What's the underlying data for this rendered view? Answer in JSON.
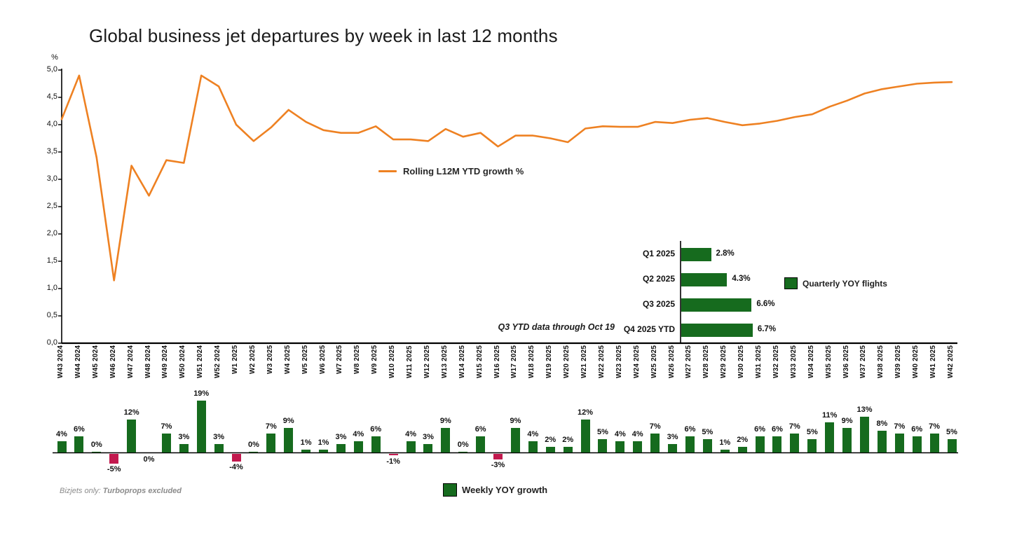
{
  "title": "Global business jet departures by week in last 12 months",
  "annotation": "Q3 YTD data through Oct 19",
  "footnote": {
    "prefix": "Bizjets only: ",
    "emphasis": "Turboprops excluded"
  },
  "legends": {
    "line": "Rolling L12M YTD growth %",
    "weekly": "Weekly YOY growth",
    "quarterly": "Quarterly YOY flights"
  },
  "colors": {
    "line_orange": "#EE8122",
    "bar_green": "#166B1E",
    "bar_crimson": "#C2194E",
    "axis_black": "#000000"
  },
  "y_axis": {
    "unit": "%",
    "tick_labels": [
      "5,0",
      "4,5",
      "4,0",
      "3,5",
      "3,0",
      "2,5",
      "2,0",
      "1,5",
      "1,0",
      "0,5",
      "0,0"
    ],
    "min": 0,
    "max": 5
  },
  "chart_data": [
    {
      "type": "line",
      "name": "Rolling L12M YTD growth %",
      "ylabel": "%",
      "ylim": [
        0,
        5
      ],
      "grid": false,
      "legend_position": "center-left of plot",
      "x": [
        "W43 2024",
        "W44 2024",
        "W45 2024",
        "W46 2024",
        "W47 2024",
        "W48 2024",
        "W49 2024",
        "W50 2024",
        "W51 2024",
        "W52 2024",
        "W1 2025",
        "W2 2025",
        "W3 2025",
        "W4 2025",
        "W5 2025",
        "W6 2025",
        "W7 2025",
        "W8 2025",
        "W9 2025",
        "W10 2025",
        "W11 2025",
        "W12 2025",
        "W13 2025",
        "W14 2025",
        "W15 2025",
        "W16 2025",
        "W17 2025",
        "W18 2025",
        "W19 2025",
        "W20 2025",
        "W21 2025",
        "W22 2025",
        "W23 2025",
        "W24 2025",
        "W25 2025",
        "W26 2025",
        "W27 2025",
        "W28 2025",
        "W29 2025",
        "W30 2025",
        "W31 2025",
        "W32 2025",
        "W33 2025",
        "W34 2025",
        "W35 2025",
        "W36 2025",
        "W37 2025",
        "W38 2025",
        "W39 2025",
        "W40 2025",
        "W41 2025",
        "W42 2025"
      ],
      "y": [
        4.1,
        4.9,
        3.4,
        1.15,
        3.25,
        2.7,
        3.35,
        3.3,
        4.9,
        4.7,
        4.0,
        3.7,
        3.95,
        4.27,
        4.05,
        3.9,
        3.85,
        3.85,
        3.97,
        3.73,
        3.73,
        3.7,
        3.92,
        3.78,
        3.85,
        3.6,
        3.8,
        3.8,
        3.75,
        3.68,
        3.93,
        3.97,
        3.96,
        3.96,
        4.05,
        4.03,
        4.09,
        4.12,
        4.05,
        3.99,
        4.02,
        4.07,
        4.14,
        4.19,
        4.33,
        4.44,
        4.57,
        4.65,
        4.7,
        4.75,
        4.77,
        4.78
      ]
    },
    {
      "type": "bar",
      "name": "Weekly YOY growth",
      "unit": "%",
      "categories": [
        "W43 2024",
        "W44 2024",
        "W45 2024",
        "W46 2024",
        "W47 2024",
        "W48 2024",
        "W49 2024",
        "W50 2024",
        "W51 2024",
        "W52 2024",
        "W1 2025",
        "W2 2025",
        "W3 2025",
        "W4 2025",
        "W5 2025",
        "W6 2025",
        "W7 2025",
        "W8 2025",
        "W9 2025",
        "W10 2025",
        "W11 2025",
        "W12 2025",
        "W13 2025",
        "W14 2025",
        "W15 2025",
        "W16 2025",
        "W17 2025",
        "W18 2025",
        "W19 2025",
        "W20 2025",
        "W21 2025",
        "W22 2025",
        "W23 2025",
        "W24 2025",
        "W25 2025",
        "W26 2025",
        "W27 2025",
        "W28 2025",
        "W29 2025",
        "W30 2025",
        "W31 2025",
        "W32 2025",
        "W33 2025",
        "W34 2025",
        "W35 2025",
        "W36 2025",
        "W37 2025",
        "W38 2025",
        "W39 2025",
        "W40 2025",
        "W41 2025",
        "W42 2025"
      ],
      "values": [
        4,
        6,
        0,
        -5,
        12,
        0,
        7,
        3,
        19,
        3,
        -4,
        0,
        7,
        9,
        1,
        1,
        3,
        4,
        6,
        -1,
        4,
        3,
        9,
        0,
        6,
        -3,
        9,
        4,
        2,
        2,
        12,
        5,
        4,
        4,
        7,
        3,
        6,
        5,
        1,
        2,
        6,
        6,
        7,
        5,
        11,
        9,
        13,
        8,
        7,
        6,
        7,
        5
      ],
      "labels": [
        "4%",
        "6%",
        "0%",
        "-5%",
        "12%",
        "0%",
        "7%",
        "3%",
        "19%",
        "3%",
        "-4%",
        "0%",
        "7%",
        "9%",
        "1%",
        "1%",
        "3%",
        "4%",
        "6%",
        "-1%",
        "4%",
        "3%",
        "9%",
        "0%",
        "6%",
        "-3%",
        "9%",
        "4%",
        "2%",
        "2%",
        "12%",
        "5%",
        "4%",
        "4%",
        "7%",
        "3%",
        "6%",
        "5%",
        "1%",
        "2%",
        "6%",
        "6%",
        "7%",
        "5%",
        "11%",
        "9%",
        "13%",
        "8%",
        "7%",
        "6%",
        "7%",
        "5%"
      ],
      "zero_label_below_indices": [
        5
      ]
    },
    {
      "type": "bar",
      "orientation": "horizontal",
      "name": "Quarterly YOY flights",
      "categories": [
        "Q1 2025",
        "Q2 2025",
        "Q3 2025",
        "Q4 2025 YTD"
      ],
      "values": [
        2.8,
        4.3,
        6.6,
        6.7
      ],
      "labels": [
        "2.8%",
        "4.3%",
        "6.6%",
        "6.7%"
      ]
    }
  ]
}
